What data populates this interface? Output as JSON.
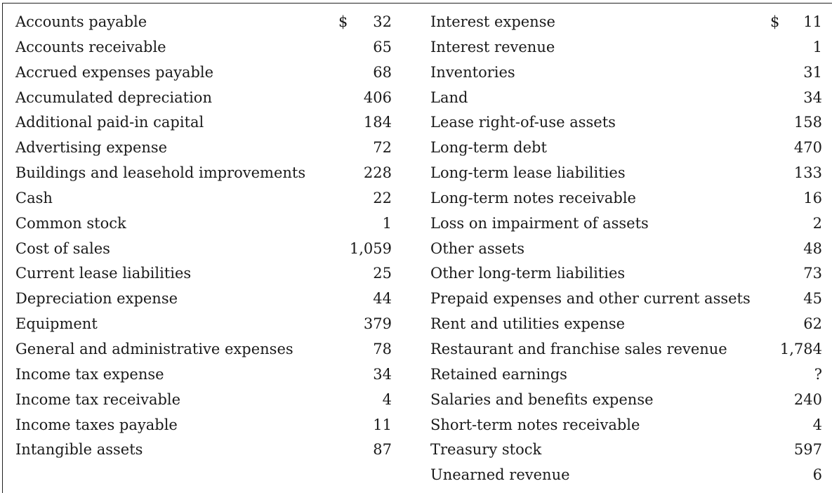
{
  "left_column": [
    {
      "label": "Accounts payable",
      "currency": "$",
      "value": "32"
    },
    {
      "label": "Accounts receivable",
      "currency": "",
      "value": "65"
    },
    {
      "label": "Accrued expenses payable",
      "currency": "",
      "value": "68"
    },
    {
      "label": "Accumulated depreciation",
      "currency": "",
      "value": "406"
    },
    {
      "label": "Additional paid-in capital",
      "currency": "",
      "value": "184"
    },
    {
      "label": "Advertising expense",
      "currency": "",
      "value": "72"
    },
    {
      "label": "Buildings and leasehold improvements",
      "currency": "",
      "value": "228"
    },
    {
      "label": "Cash",
      "currency": "",
      "value": "22"
    },
    {
      "label": "Common stock",
      "currency": "",
      "value": "1"
    },
    {
      "label": "Cost of sales",
      "currency": "",
      "value": "1,059"
    },
    {
      "label": "Current lease liabilities",
      "currency": "",
      "value": "25"
    },
    {
      "label": "Depreciation expense",
      "currency": "",
      "value": "44"
    },
    {
      "label": "Equipment",
      "currency": "",
      "value": "379"
    },
    {
      "label": "General and administrative expenses",
      "currency": "",
      "value": "78"
    },
    {
      "label": "Income tax expense",
      "currency": "",
      "value": "34"
    },
    {
      "label": "Income tax receivable",
      "currency": "",
      "value": "4"
    },
    {
      "label": "Income taxes payable",
      "currency": "",
      "value": "11"
    },
    {
      "label": "Intangible assets",
      "currency": "",
      "value": "87"
    }
  ],
  "right_column": [
    {
      "label": "Interest expense",
      "currency": "$",
      "value": "11"
    },
    {
      "label": "Interest revenue",
      "currency": "",
      "value": "1"
    },
    {
      "label": "Inventories",
      "currency": "",
      "value": "31"
    },
    {
      "label": "Land",
      "currency": "",
      "value": "34"
    },
    {
      "label": "Lease right-of-use assets",
      "currency": "",
      "value": "158"
    },
    {
      "label": "Long-term debt",
      "currency": "",
      "value": "470"
    },
    {
      "label": "Long-term lease liabilities",
      "currency": "",
      "value": "133"
    },
    {
      "label": "Long-term notes receivable",
      "currency": "",
      "value": "16"
    },
    {
      "label": "Loss on impairment of assets",
      "currency": "",
      "value": "2"
    },
    {
      "label": "Other assets",
      "currency": "",
      "value": "48"
    },
    {
      "label": "Other long-term liabilities",
      "currency": "",
      "value": "73"
    },
    {
      "label": "Prepaid expenses and other current assets",
      "currency": "",
      "value": "45"
    },
    {
      "label": "Rent and utilities expense",
      "currency": "",
      "value": "62"
    },
    {
      "label": "Restaurant and franchise sales revenue",
      "currency": "",
      "value": "1,784"
    },
    {
      "label": "Retained earnings",
      "currency": "",
      "value": "?"
    },
    {
      "label": "Salaries and benefits expense",
      "currency": "",
      "value": "240"
    },
    {
      "label": "Short-term notes receivable",
      "currency": "",
      "value": "4"
    },
    {
      "label": "Treasury stock",
      "currency": "",
      "value": "597"
    },
    {
      "label": "Unearned revenue",
      "currency": "",
      "value": "6"
    }
  ]
}
